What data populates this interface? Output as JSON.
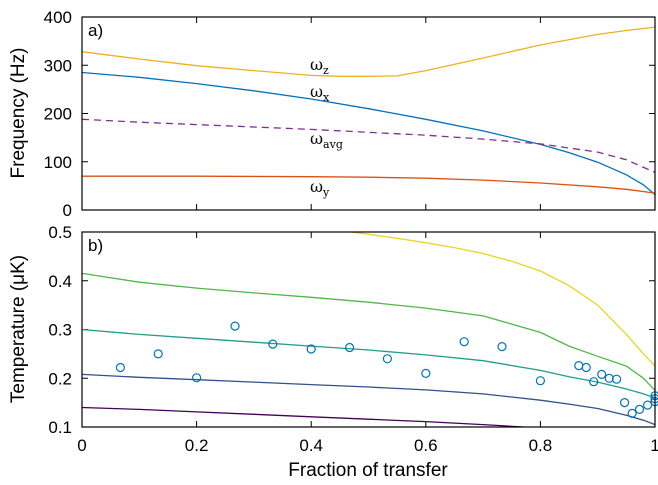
{
  "chart_data": [
    {
      "panel_label": "a)",
      "type": "line",
      "ylabel": "Frequency (Hz)",
      "xlim": [
        0,
        1
      ],
      "ylim": [
        0,
        400
      ],
      "xticks": [
        "0",
        "0.2",
        "0.4",
        "0.6",
        "0.8",
        "1"
      ],
      "yticks": [
        "0",
        "100",
        "200",
        "300",
        "400"
      ],
      "series": [
        {
          "name": "ω",
          "subscript": "z",
          "color": "#EDB120",
          "dashed": false,
          "x": [
            0,
            0.1,
            0.2,
            0.3,
            0.4,
            0.45,
            0.5,
            0.55,
            0.6,
            0.7,
            0.8,
            0.9,
            0.95,
            1.0
          ],
          "y": [
            328,
            313,
            299,
            289,
            279,
            277,
            277,
            278,
            289,
            315,
            342,
            364,
            372,
            379
          ]
        },
        {
          "name": "ω",
          "subscript": "x",
          "color": "#0072BD",
          "dashed": false,
          "x": [
            0,
            0.1,
            0.2,
            0.3,
            0.4,
            0.5,
            0.6,
            0.7,
            0.8,
            0.85,
            0.9,
            0.95,
            0.98,
            1.0
          ],
          "y": [
            285,
            275,
            262,
            247,
            230,
            210,
            188,
            164,
            136,
            119,
            99,
            73,
            52,
            32
          ]
        },
        {
          "name": "ω",
          "subscript": "avg",
          "color": "#7E2F8E",
          "dashed": true,
          "x": [
            0,
            0.1,
            0.2,
            0.3,
            0.4,
            0.5,
            0.6,
            0.7,
            0.8,
            0.9,
            0.95,
            1.0
          ],
          "y": [
            188,
            182,
            177,
            172,
            167,
            161,
            155,
            147,
            137,
            120,
            104,
            78
          ]
        },
        {
          "name": "ω",
          "subscript": "y",
          "color": "#D95319",
          "dashed": false,
          "x": [
            0,
            0.2,
            0.4,
            0.5,
            0.6,
            0.7,
            0.8,
            0.9,
            0.95,
            1.0
          ],
          "y": [
            70,
            70,
            69,
            68,
            66,
            62,
            56,
            48,
            43,
            35
          ]
        }
      ]
    },
    {
      "panel_label": "b)",
      "type": "line",
      "xlabel": "Fraction of transfer",
      "ylabel": "Temperature (μK)",
      "xlim": [
        0,
        1
      ],
      "ylim": [
        0.1,
        0.5
      ],
      "xticks": [
        "0",
        "0.2",
        "0.4",
        "0.6",
        "0.8",
        "1"
      ],
      "yticks": [
        "0.1",
        "0.2",
        "0.3",
        "0.4",
        "0.5"
      ],
      "series": [
        {
          "color": "#EDD324",
          "x": [
            0.47,
            0.55,
            0.6,
            0.65,
            0.7,
            0.75,
            0.8,
            0.85,
            0.9,
            0.95,
            0.98,
            1.0
          ],
          "y": [
            0.5,
            0.487,
            0.478,
            0.468,
            0.456,
            0.44,
            0.42,
            0.39,
            0.35,
            0.29,
            0.25,
            0.225
          ]
        },
        {
          "color": "#4EB848",
          "x": [
            0,
            0.1,
            0.2,
            0.3,
            0.4,
            0.5,
            0.6,
            0.7,
            0.8,
            0.85,
            0.9,
            0.95,
            0.98,
            1.0
          ],
          "y": [
            0.415,
            0.397,
            0.385,
            0.375,
            0.366,
            0.356,
            0.344,
            0.328,
            0.294,
            0.266,
            0.245,
            0.225,
            0.2,
            0.175
          ]
        },
        {
          "color": "#1F9E89",
          "x": [
            0,
            0.1,
            0.2,
            0.3,
            0.4,
            0.5,
            0.6,
            0.7,
            0.8,
            0.85,
            0.9,
            0.95,
            0.98,
            1.0
          ],
          "y": [
            0.3,
            0.29,
            0.282,
            0.274,
            0.266,
            0.258,
            0.248,
            0.236,
            0.216,
            0.203,
            0.192,
            0.178,
            0.168,
            0.16
          ]
        },
        {
          "color": "#31508C",
          "x": [
            0,
            0.1,
            0.2,
            0.3,
            0.4,
            0.5,
            0.6,
            0.7,
            0.8,
            0.85,
            0.9,
            0.95,
            0.98,
            1.0
          ],
          "y": [
            0.208,
            0.202,
            0.197,
            0.192,
            0.187,
            0.182,
            0.176,
            0.168,
            0.155,
            0.147,
            0.138,
            0.124,
            0.114,
            0.105
          ]
        },
        {
          "color": "#440154",
          "x": [
            0,
            0.1,
            0.2,
            0.3,
            0.4,
            0.5,
            0.6,
            0.7,
            0.77
          ],
          "y": [
            0.14,
            0.136,
            0.131,
            0.126,
            0.121,
            0.116,
            0.111,
            0.105,
            0.1
          ]
        }
      ],
      "scatter": {
        "color": "#0072BD",
        "points": [
          [
            0.067,
            0.222
          ],
          [
            0.133,
            0.25
          ],
          [
            0.2,
            0.201
          ],
          [
            0.267,
            0.307
          ],
          [
            0.333,
            0.27
          ],
          [
            0.4,
            0.26
          ],
          [
            0.467,
            0.263
          ],
          [
            0.533,
            0.24
          ],
          [
            0.6,
            0.21
          ],
          [
            0.667,
            0.275
          ],
          [
            0.733,
            0.265
          ],
          [
            0.8,
            0.195
          ],
          [
            0.867,
            0.226
          ],
          [
            0.88,
            0.222
          ],
          [
            0.893,
            0.193
          ],
          [
            0.907,
            0.208
          ],
          [
            0.92,
            0.2
          ],
          [
            0.933,
            0.198
          ],
          [
            0.947,
            0.15
          ],
          [
            0.96,
            0.128
          ],
          [
            0.973,
            0.136
          ],
          [
            0.987,
            0.145
          ],
          [
            1.0,
            0.152
          ],
          [
            1.0,
            0.158
          ],
          [
            1.0,
            0.164
          ]
        ]
      }
    }
  ]
}
